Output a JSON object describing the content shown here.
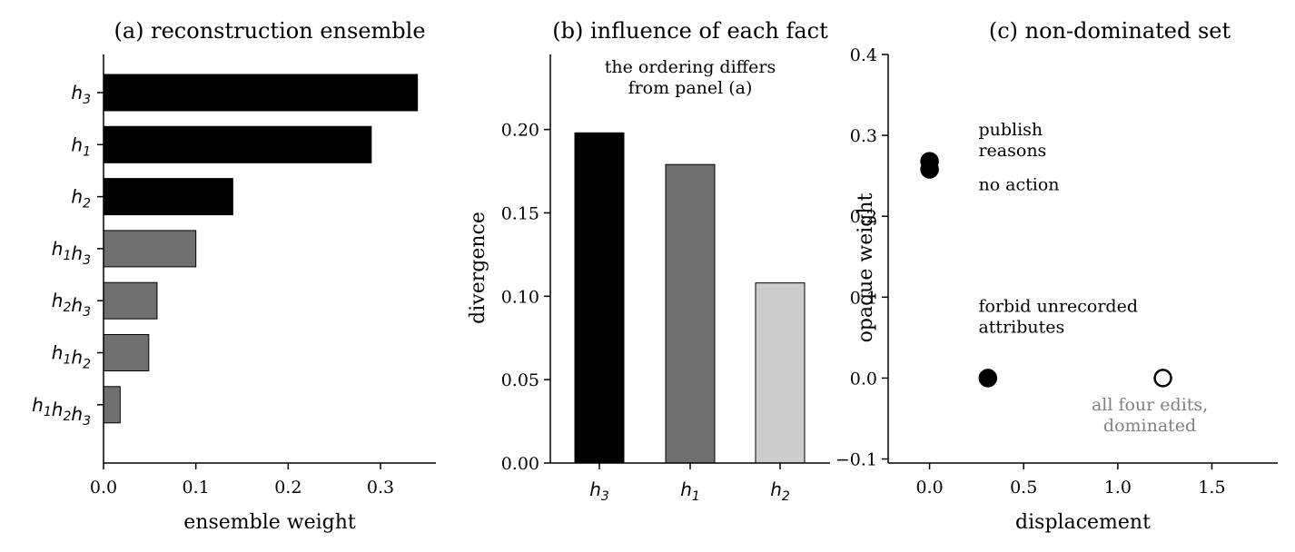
{
  "chart_data": [
    {
      "type": "bar",
      "orientation": "horizontal",
      "title": "(a) reconstruction ensemble",
      "xlabel": "ensemble weight",
      "ylabel": "",
      "xlim": [
        0,
        0.36
      ],
      "xticks": [
        0.0,
        0.1,
        0.2,
        0.3
      ],
      "xtick_labels": [
        "0.0",
        "0.1",
        "0.2",
        "0.3"
      ],
      "categories": [
        {
          "label": "h3",
          "parts": [
            {
              "base": "h",
              "sub": "3"
            }
          ],
          "value": 0.34,
          "color": "#000000"
        },
        {
          "label": "h1",
          "parts": [
            {
              "base": "h",
              "sub": "1"
            }
          ],
          "value": 0.29,
          "color": "#000000"
        },
        {
          "label": "h2",
          "parts": [
            {
              "base": "h",
              "sub": "2"
            }
          ],
          "value": 0.14,
          "color": "#000000"
        },
        {
          "label": "h1h3",
          "parts": [
            {
              "base": "h",
              "sub": "1"
            },
            {
              "base": "h",
              "sub": "3"
            }
          ],
          "value": 0.1,
          "color": "#707070"
        },
        {
          "label": "h2h3",
          "parts": [
            {
              "base": "h",
              "sub": "2"
            },
            {
              "base": "h",
              "sub": "3"
            }
          ],
          "value": 0.058,
          "color": "#707070"
        },
        {
          "label": "h1h2",
          "parts": [
            {
              "base": "h",
              "sub": "1"
            },
            {
              "base": "h",
              "sub": "2"
            }
          ],
          "value": 0.049,
          "color": "#707070"
        },
        {
          "label": "h1h2h3",
          "parts": [
            {
              "base": "h",
              "sub": "1"
            },
            {
              "base": "h",
              "sub": "2"
            },
            {
              "base": "h",
              "sub": "3"
            }
          ],
          "value": 0.018,
          "color": "#707070"
        }
      ]
    },
    {
      "type": "bar",
      "title": "(b) influence of each fact",
      "xlabel": "",
      "ylabel": "divergence",
      "ylim": [
        0,
        0.245
      ],
      "yticks": [
        0.0,
        0.05,
        0.1,
        0.15,
        0.2
      ],
      "ytick_labels": [
        "0.00",
        "0.05",
        "0.10",
        "0.15",
        "0.20"
      ],
      "annotation_lines": [
        "the ordering differs",
        "from panel (a)"
      ],
      "categories": [
        {
          "label": "h3",
          "parts": [
            {
              "base": "h",
              "sub": "3"
            }
          ],
          "value": 0.198,
          "color": "#000000"
        },
        {
          "label": "h1",
          "parts": [
            {
              "base": "h",
              "sub": "1"
            }
          ],
          "value": 0.179,
          "color": "#707070"
        },
        {
          "label": "h2",
          "parts": [
            {
              "base": "h",
              "sub": "2"
            }
          ],
          "value": 0.108,
          "color": "#cccccc"
        }
      ]
    },
    {
      "type": "scatter",
      "title": "(c) non-dominated set",
      "xlabel": "displacement",
      "ylabel": "opaque weight",
      "xlim": [
        -0.22,
        1.85
      ],
      "ylim": [
        -0.105,
        0.4
      ],
      "xticks": [
        0.0,
        0.5,
        1.0,
        1.5
      ],
      "xtick_labels": [
        "0.0",
        "0.5",
        "1.0",
        "1.5"
      ],
      "yticks": [
        -0.1,
        0.0,
        0.1,
        0.2,
        0.3,
        0.4
      ],
      "ytick_labels": [
        "−0.1",
        "0.0",
        "0.1",
        "0.2",
        "0.3",
        "0.4"
      ],
      "points": [
        {
          "x": 0.0,
          "y": 0.268,
          "filled": true
        },
        {
          "x": 0.0,
          "y": 0.258,
          "filled": true
        },
        {
          "x": 0.31,
          "y": 0.0,
          "filled": true
        },
        {
          "x": 1.24,
          "y": 0.0,
          "filled": false
        }
      ],
      "annotations": [
        {
          "lines": [
            "publish",
            "reasons"
          ],
          "x": 0.26,
          "y": 0.3,
          "style": "black"
        },
        {
          "lines": [
            "no action"
          ],
          "x": 0.26,
          "y": 0.232,
          "style": "black"
        },
        {
          "lines": [
            "forbid unrecorded",
            "attributes"
          ],
          "x": 0.26,
          "y": 0.082,
          "style": "black"
        },
        {
          "lines": [
            "all four edits,",
            "dominated"
          ],
          "x": 1.17,
          "y": -0.04,
          "style": "gray",
          "anchor": "middle"
        }
      ]
    }
  ]
}
